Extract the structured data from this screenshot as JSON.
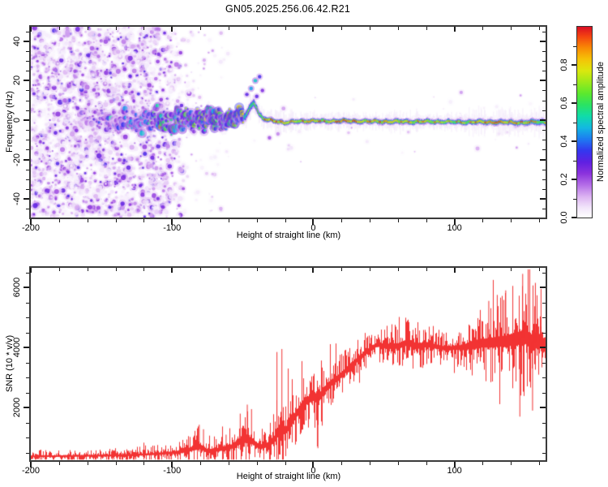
{
  "title": "GN05.2025.256.06.42.R21",
  "colors": {
    "background": "#ffffff",
    "frame": "#3a3a3a",
    "tick": "#1b1b1b",
    "text": "#000000",
    "trace_red": "#f23333"
  },
  "chart_data": [
    {
      "id": "spectrogram",
      "type": "heatmap",
      "xlabel": "Height of straight line (km)",
      "ylabel": "Frequency (Hz)",
      "xlim": [
        -200,
        164.5
      ],
      "ylim": [
        -49.4,
        47.3
      ],
      "x_ticks": [
        {
          "v": -200,
          "label": "-200"
        },
        {
          "v": -100,
          "label": "-100"
        },
        {
          "v": 0,
          "label": "0"
        },
        {
          "v": 100,
          "label": "100"
        }
      ],
      "x_minor_step": 20,
      "y_ticks": [
        {
          "v": 40,
          "label": "40"
        },
        {
          "v": 20,
          "label": "20"
        },
        {
          "v": 0,
          "label": "0"
        },
        {
          "v": -20,
          "label": "-20"
        },
        {
          "v": -40,
          "label": "-40"
        }
      ],
      "y_minor_step": 5,
      "colorbar": {
        "label": "Normalized spectral amplitude",
        "range": [
          0,
          1
        ],
        "ticks": [
          {
            "v": 0.0,
            "label": "0.0"
          },
          {
            "v": 0.2,
            "label": "0.2"
          },
          {
            "v": 0.4,
            "label": "0.4"
          },
          {
            "v": 0.6,
            "label": "0.6"
          },
          {
            "v": 0.8,
            "label": "0.8"
          }
        ],
        "minor_step": 0.1,
        "colormap_stops": [
          [
            0.0,
            "#ffffff"
          ],
          [
            0.05,
            "#f3e7fb"
          ],
          [
            0.11,
            "#dcb3f2"
          ],
          [
            0.17,
            "#b56fe8"
          ],
          [
            0.23,
            "#8c33dd"
          ],
          [
            0.29,
            "#6020e2"
          ],
          [
            0.35,
            "#3437ef"
          ],
          [
            0.41,
            "#1e7af2"
          ],
          [
            0.47,
            "#13b8e2"
          ],
          [
            0.53,
            "#10dcab"
          ],
          [
            0.59,
            "#2ae364"
          ],
          [
            0.65,
            "#5ce92e"
          ],
          [
            0.71,
            "#9dea1a"
          ],
          [
            0.77,
            "#dce80e"
          ],
          [
            0.83,
            "#f6c307"
          ],
          [
            0.89,
            "#f98a05"
          ],
          [
            0.95,
            "#f44311"
          ],
          [
            1.0,
            "#da0e24"
          ]
        ]
      },
      "noise_field": {
        "count": 3000,
        "km_min": -200,
        "km_max": -86,
        "full_density_until": -118,
        "freq_min": -49,
        "freq_max": 47,
        "amp_min": 0.02,
        "amp_max": 0.32
      },
      "sparse_fields": [
        {
          "count": 260,
          "km_min": -130,
          "km_max": -60,
          "freq_mode": "uniform",
          "freq_min": -48,
          "freq_max": 45,
          "amp_max": 0.14,
          "accept": 0.5
        },
        {
          "count": 280,
          "km_min": -90,
          "km_max": 164,
          "freq_mode": "gauss",
          "sigma": 11,
          "amp_max": 0.12,
          "accept_near": 0.5,
          "accept_far": 0.18,
          "accept_break": -40
        }
      ],
      "band_track": [
        [
          -166,
          0.5,
          3.0,
          0.2
        ],
        [
          -150,
          0.0,
          4.0,
          0.28
        ],
        [
          -135,
          1.0,
          4.5,
          0.33
        ],
        [
          -120,
          -0.5,
          5.0,
          0.38
        ],
        [
          -110,
          0.5,
          5.5,
          0.45
        ],
        [
          -100,
          -1.0,
          5.5,
          0.5
        ],
        [
          -90,
          0.5,
          5.0,
          0.52
        ],
        [
          -80,
          -0.5,
          5.5,
          0.55
        ],
        [
          -72,
          1.0,
          5.0,
          0.55
        ],
        [
          -65,
          -0.5,
          4.5,
          0.58
        ],
        [
          -58,
          0.5,
          4.0,
          0.6
        ],
        [
          -52,
          1.0,
          3.5,
          0.62
        ],
        [
          -48,
          2.0,
          3.2,
          0.65
        ],
        [
          -44,
          7.0,
          3.0,
          0.68
        ],
        [
          -42,
          9.0,
          2.8,
          0.7
        ],
        [
          -40,
          6.5,
          2.6,
          0.68
        ],
        [
          -38,
          2.5,
          2.2,
          0.7
        ],
        [
          -35,
          0.5,
          1.9,
          0.85
        ],
        [
          -30,
          0.0,
          1.8,
          0.95
        ],
        [
          -25,
          -0.5,
          1.8,
          0.97
        ],
        [
          -20,
          -1.5,
          1.7,
          0.9
        ],
        [
          -15,
          -1.0,
          1.7,
          0.85
        ],
        [
          -10,
          -0.5,
          1.7,
          0.9
        ],
        [
          -5,
          -0.5,
          1.8,
          0.92
        ],
        [
          0,
          -0.5,
          1.7,
          0.9
        ],
        [
          10,
          -0.5,
          1.7,
          0.88
        ],
        [
          20,
          -0.5,
          1.8,
          0.92
        ],
        [
          30,
          -0.5,
          1.8,
          0.95
        ],
        [
          40,
          -0.7,
          1.8,
          0.9
        ],
        [
          50,
          -0.7,
          1.9,
          0.93
        ],
        [
          60,
          -0.8,
          2.0,
          0.9
        ],
        [
          70,
          -0.8,
          1.9,
          0.88
        ],
        [
          80,
          -0.8,
          1.9,
          0.9
        ],
        [
          90,
          -0.8,
          1.8,
          0.82
        ],
        [
          100,
          -1.0,
          1.8,
          0.8
        ],
        [
          110,
          -1.0,
          1.9,
          0.85
        ],
        [
          120,
          -1.0,
          2.0,
          0.9
        ],
        [
          130,
          -1.0,
          2.0,
          0.92
        ],
        [
          140,
          -1.2,
          2.0,
          0.9
        ],
        [
          150,
          -1.2,
          2.1,
          0.85
        ],
        [
          157,
          -1.0,
          2.2,
          0.8
        ],
        [
          164.5,
          -1.0,
          2.3,
          0.78
        ]
      ],
      "extra_blobs": [
        [
          -44,
          16,
          0.45
        ],
        [
          -41,
          20,
          0.5
        ],
        [
          -38,
          22,
          0.33
        ],
        [
          -47,
          13,
          0.3
        ],
        [
          -36,
          15,
          0.25
        ],
        [
          -40,
          12,
          0.3
        ],
        [
          -31,
          -9,
          0.2
        ],
        [
          -25,
          -7,
          0.15
        ]
      ],
      "fringe_regions": [
        [
          110,
          164.5,
          1.9
        ],
        [
          -35,
          -15,
          1.4
        ],
        [
          55,
          75,
          1.3
        ]
      ],
      "notes": "Purple broadband speckle noise fills heights -200 to about -100 km; a 0 Hz echo band emerges near -160 km, widens with blue-cyan speckle until -50 km, bumps up to about +9 Hz near -42 km, then continues as a narrow red/yellow-cored line near 0 to -1 Hz out to 164 km."
    },
    {
      "id": "snr",
      "type": "line",
      "xlabel": "Height of straight line (km)",
      "ylabel": "SNR (10 * v/v)",
      "xlim": [
        -200,
        164.5
      ],
      "ylim": [
        250,
        6650
      ],
      "x_ticks": [
        {
          "v": -200,
          "label": "-200"
        },
        {
          "v": -100,
          "label": "-100"
        },
        {
          "v": 0,
          "label": "0"
        },
        {
          "v": 100,
          "label": "100"
        }
      ],
      "x_minor_step": 20,
      "y_ticks": [
        {
          "v": 2000,
          "label": "2000"
        },
        {
          "v": 4000,
          "label": "4000"
        },
        {
          "v": 6000,
          "label": "6000"
        }
      ],
      "y_minor_step": 500,
      "line_color": "#f23333",
      "trend": [
        [
          -200,
          380,
          200
        ],
        [
          -170,
          390,
          210
        ],
        [
          -140,
          410,
          230
        ],
        [
          -115,
          450,
          260
        ],
        [
          -100,
          500,
          320
        ],
        [
          -90,
          560,
          420
        ],
        [
          -85,
          650,
          600
        ],
        [
          -80,
          700,
          700
        ],
        [
          -76,
          560,
          440
        ],
        [
          -70,
          580,
          460
        ],
        [
          -64,
          640,
          540
        ],
        [
          -58,
          700,
          600
        ],
        [
          -53,
          850,
          800
        ],
        [
          -48,
          950,
          950
        ],
        [
          -44,
          900,
          850
        ],
        [
          -40,
          750,
          600
        ],
        [
          -36,
          700,
          550
        ],
        [
          -31,
          800,
          650
        ],
        [
          -27,
          1000,
          950
        ],
        [
          -23,
          1400,
          1550
        ],
        [
          -20,
          1200,
          950
        ],
        [
          -16,
          1500,
          950
        ],
        [
          -12,
          1800,
          950
        ],
        [
          -8,
          2100,
          950
        ],
        [
          -4,
          2250,
          950
        ],
        [
          0,
          2350,
          1000
        ],
        [
          4,
          2350,
          1150
        ],
        [
          8,
          2600,
          950
        ],
        [
          12,
          2800,
          850
        ],
        [
          16,
          2950,
          800
        ],
        [
          20,
          3100,
          750
        ],
        [
          25,
          3350,
          700
        ],
        [
          30,
          3550,
          650
        ],
        [
          35,
          3750,
          600
        ],
        [
          40,
          3950,
          600
        ],
        [
          45,
          4100,
          550
        ],
        [
          50,
          4050,
          600
        ],
        [
          55,
          4050,
          700
        ],
        [
          60,
          4050,
          800
        ],
        [
          65,
          4150,
          800
        ],
        [
          70,
          4100,
          750
        ],
        [
          75,
          4050,
          750
        ],
        [
          80,
          4100,
          700
        ],
        [
          85,
          4050,
          650
        ],
        [
          90,
          4000,
          550
        ],
        [
          95,
          3950,
          500
        ],
        [
          100,
          4000,
          550
        ],
        [
          105,
          4000,
          700
        ],
        [
          110,
          4050,
          900
        ],
        [
          115,
          4100,
          1100
        ],
        [
          120,
          4150,
          1200
        ],
        [
          125,
          4150,
          1300
        ],
        [
          130,
          4200,
          1400
        ],
        [
          135,
          4200,
          1500
        ],
        [
          140,
          4250,
          1600
        ],
        [
          145,
          4300,
          1750
        ],
        [
          150,
          4350,
          1900
        ],
        [
          155,
          4200,
          1800
        ],
        [
          160,
          4200,
          1750
        ],
        [
          164.5,
          4050,
          1600
        ]
      ],
      "spikes": [
        [
          -81,
          1430
        ],
        [
          -78,
          1280
        ],
        [
          -69,
          950
        ],
        [
          -62,
          1100
        ],
        [
          -52,
          1800
        ],
        [
          -47,
          2100
        ],
        [
          -44,
          1950
        ],
        [
          -26,
          3850
        ],
        [
          -22.5,
          3950
        ],
        [
          -18,
          3300
        ],
        [
          3,
          650
        ],
        [
          118,
          5250
        ],
        [
          124,
          5550
        ],
        [
          130,
          5750
        ],
        [
          136,
          5900
        ],
        [
          141,
          6050
        ],
        [
          146,
          1700
        ],
        [
          148,
          6450
        ],
        [
          153,
          6600
        ],
        [
          155,
          1900
        ],
        [
          157,
          6150
        ],
        [
          161,
          5950
        ]
      ]
    }
  ]
}
